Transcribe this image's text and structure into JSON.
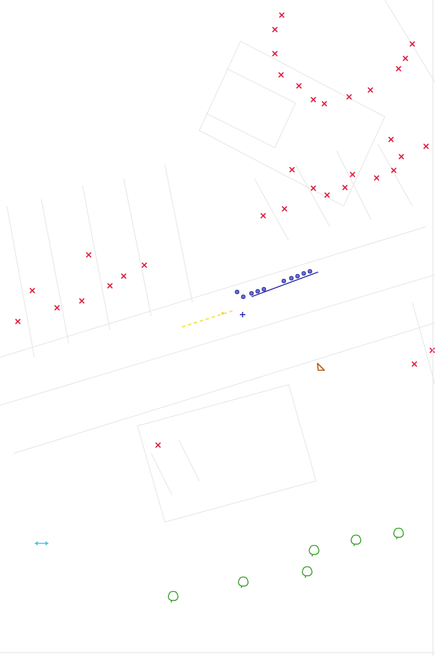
{
  "map": {
    "colors": {
      "background": "#ffffff",
      "linework": "#d9d9d9",
      "crosses": "#e0183c",
      "blue_markers": "#3b3fbf",
      "blue_line": "#1f1fa8",
      "yellow": "#f0e35a",
      "trees": "#2a9a1a",
      "triangle": "#b5570e",
      "cyan": "#4fc3e8"
    },
    "icons": {
      "cross": "x-marker-icon",
      "circle": "blue-circle-marker-icon",
      "tree": "tree-symbol-icon",
      "triangle": "triangle-marker-icon",
      "arrow": "double-arrow-icon",
      "plus": "plus-marker-icon"
    }
  }
}
